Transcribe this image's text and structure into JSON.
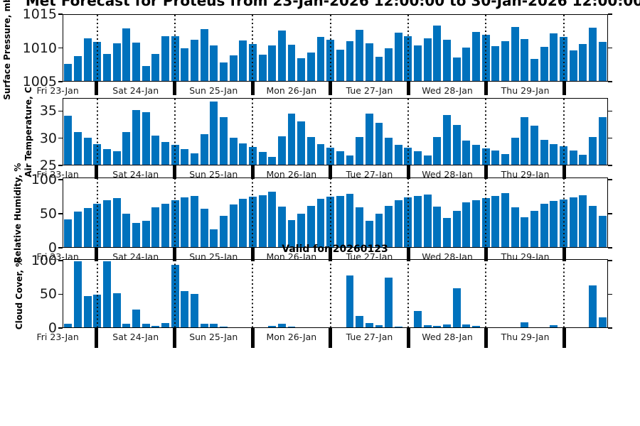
{
  "title": "Met Forecast for Proteus from 23-Jan-2026 12:00:00 to 30-Jan-2026 12:00:00",
  "annotation": "Valid for 20260123",
  "colors": {
    "bar": "#0072BD",
    "axis": "#000000",
    "tick_label": "#1a1a1a"
  },
  "day_labels": [
    "Fri 23-Jan",
    "Sat 24-Jan",
    "Sun 25-Jan",
    "Mon 26-Jan",
    "Tue 27-Jan",
    "Wed 28-Jan",
    "Thu 29-Jan"
  ],
  "chart_data": [
    {
      "type": "bar",
      "name": "pressure",
      "ylabel": "Surface Pressure, mb",
      "yticks": [
        1005,
        1010,
        1015
      ],
      "ylim": [
        1005,
        1015
      ],
      "x_step_hours": 3,
      "values": [
        1007.6,
        1008.8,
        1011.5,
        1010.9,
        1009.1,
        1010.7,
        1013.0,
        1010.8,
        1007.3,
        1009.1,
        1011.8,
        1011.8,
        1010.0,
        1011.2,
        1012.9,
        1010.4,
        1007.8,
        1008.9,
        1011.1,
        1010.6,
        1009.0,
        1010.4,
        1012.6,
        1010.5,
        1008.4,
        1009.3,
        1011.7,
        1011.2,
        1009.7,
        1011.0,
        1012.7,
        1010.7,
        1008.7,
        1010.0,
        1012.3,
        1011.8,
        1010.4,
        1011.5,
        1013.4,
        1011.2,
        1008.6,
        1010.1,
        1012.4,
        1012.0,
        1010.3,
        1011.0,
        1013.2,
        1011.3,
        1008.3,
        1010.2,
        1012.2,
        1011.7,
        1009.6,
        1010.6,
        1013.1,
        1010.9
      ]
    },
    {
      "type": "bar",
      "name": "temperature",
      "ylabel": "Air Temperature, C",
      "yticks": [
        25,
        30,
        35
      ],
      "ylim": [
        25,
        37.4
      ],
      "x_step_hours": 3,
      "values": [
        34.2,
        31.1,
        30.1,
        28.9,
        28.0,
        27.6,
        31.1,
        35.3,
        34.9,
        30.5,
        29.3,
        28.7,
        28.0,
        27.2,
        30.8,
        36.9,
        33.9,
        30.1,
        29.0,
        28.4,
        27.4,
        26.5,
        30.3,
        34.6,
        33.1,
        30.2,
        28.9,
        28.2,
        27.6,
        26.8,
        30.2,
        34.6,
        32.9,
        30.1,
        28.8,
        28.2,
        27.5,
        26.8,
        30.2,
        34.4,
        32.5,
        29.5,
        28.8,
        28.1,
        27.7,
        27.0,
        30.1,
        34.0,
        32.3,
        29.7,
        28.9,
        28.5,
        27.7,
        26.9,
        30.2,
        33.9
      ]
    },
    {
      "type": "bar",
      "name": "humidity",
      "ylabel": "Relative Humidity, %",
      "yticks": [
        0,
        50,
        100
      ],
      "ylim": [
        0,
        103
      ],
      "x_step_hours": 3,
      "values": [
        41,
        53,
        58,
        65,
        70,
        73,
        50,
        36,
        39,
        59,
        65,
        70,
        74,
        77,
        57,
        27,
        47,
        64,
        72,
        75,
        78,
        83,
        61,
        40,
        50,
        62,
        72,
        75,
        77,
        80,
        60,
        39,
        50,
        62,
        70,
        74,
        76,
        79,
        61,
        44,
        54,
        67,
        70,
        73,
        76,
        81,
        60,
        45,
        54,
        65,
        69,
        71,
        74,
        78,
        62,
        47
      ]
    },
    {
      "type": "bar",
      "name": "cloud",
      "ylabel": "Cloud Cover, %",
      "yticks": [
        0,
        50,
        100
      ],
      "ylim": [
        0,
        102
      ],
      "x_step_hours": 3,
      "values": [
        5,
        100,
        47,
        49,
        100,
        52,
        5,
        27,
        5,
        2,
        6,
        95,
        55,
        51,
        5,
        5,
        1,
        0,
        0,
        0,
        0,
        2,
        5,
        1,
        0,
        0,
        0,
        0,
        0,
        78,
        17,
        6,
        3,
        75,
        1,
        0,
        25,
        3,
        2,
        4,
        59,
        4,
        2,
        0,
        0,
        0,
        0,
        8,
        0,
        0,
        3,
        0,
        0,
        0,
        63,
        15
      ]
    }
  ],
  "n_slots": 56,
  "day_boundary_slots": [
    3,
    11,
    19,
    27,
    35,
    43,
    51
  ]
}
